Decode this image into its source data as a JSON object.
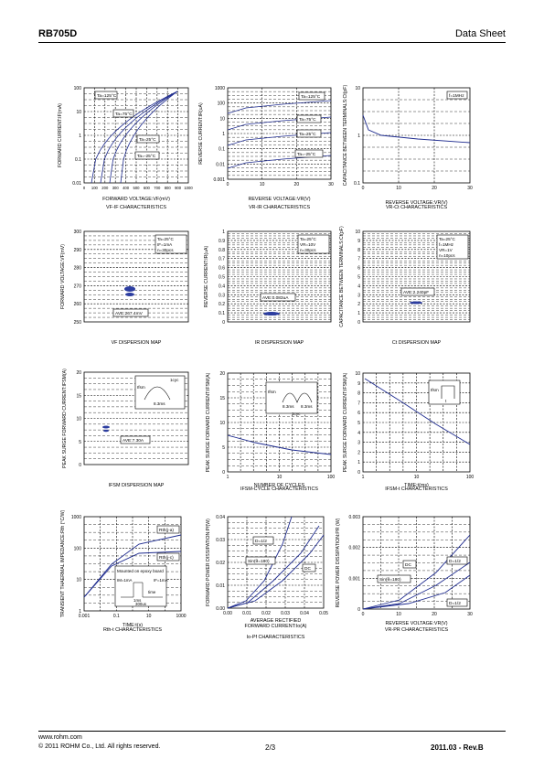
{
  "header": {
    "part_number": "RB705D",
    "doc_type": "Data Sheet"
  },
  "footer": {
    "url": "www.rohm.com",
    "copyright": "© 2011  ROHM Co., Ltd. All rights reserved.",
    "page": "2/3",
    "revision": "2011.03 - Rev.B"
  },
  "graphs": [
    {
      "id": "vf-if",
      "ylabel": "FORWARD CURRENT:IF(mA)",
      "xlabel": "FORWARD VOLTAGE:VF(mV)",
      "caption": "VF-IF CHARACTERISTICS",
      "xticks": [
        "0",
        "100",
        "200",
        "300",
        "400",
        "500",
        "600",
        "700",
        "800",
        "900",
        "1000"
      ],
      "yticks": [
        "100",
        "10",
        "1",
        "0.1",
        "0.01"
      ],
      "labels": [
        "Ta=125°C",
        "Ta=75°C",
        "Ta=25°C",
        "Ta=-25°C"
      ]
    },
    {
      "id": "vr-ir",
      "ylabel": "REVERSE CURRENT:IR(uA)",
      "xlabel": "REVERSE VOLTAGE:VR(V)",
      "caption": "VR-IR CHARACTERISTICS",
      "xticks": [
        "0",
        "10",
        "20",
        "30"
      ],
      "yticks": [
        "1000",
        "100",
        "10",
        "1",
        "0.1",
        "0.01",
        "0.001"
      ],
      "labels": [
        "Ta=125°C",
        "Ta=75°C",
        "Ta=25°C",
        "Ta=-25°C"
      ]
    },
    {
      "id": "vr-ct",
      "ylabel": "CAPACITANCE BETWEEN TERMINALS:Ct(pF)",
      "xlabel": "REVERSE VOLTAGE:VR(V)",
      "caption": "VR-Ct CHARACTERISTICS",
      "xticks": [
        "0",
        "10",
        "20",
        "30"
      ],
      "yticks": [
        "10",
        "1",
        "0.1"
      ],
      "labels": [
        "f=1MHz"
      ]
    },
    {
      "id": "vf-map",
      "ylabel": "FORWARD VOLTAGE:VF(mV)",
      "caption": "VF DISPERSION MAP",
      "yticks": [
        "300",
        "290",
        "280",
        "270",
        "260",
        "250"
      ],
      "labels": [
        "Ta=25°C",
        "IF=1mA",
        "n=30pcs"
      ],
      "ave": "AVE:267.4mV"
    },
    {
      "id": "ir-map",
      "ylabel": "REVERSE CURRENT:IR(uA)",
      "caption": "IR DISPERSION MAP",
      "yticks": [
        "1",
        "0.9",
        "0.8",
        "0.7",
        "0.6",
        "0.5",
        "0.4",
        "0.3",
        "0.2",
        "0.1",
        "0"
      ],
      "labels": [
        "Ta=25°C",
        "VR=10V",
        "n=30pcs"
      ],
      "ave": "AVE:0.083uA"
    },
    {
      "id": "ct-map",
      "ylabel": "CAPACITANCE BETWEEN TERMINALS:Ct(pF)",
      "caption": "Ct DISPERSION MAP",
      "yticks": [
        "10",
        "9",
        "8",
        "7",
        "6",
        "5",
        "4",
        "3",
        "2",
        "1",
        "0"
      ],
      "labels": [
        "Ta=25°C",
        "f=1MHz",
        "VR=1V",
        "n=10pcs"
      ],
      "ave": "AVE:2.240pF"
    },
    {
      "id": "ifsm-map",
      "ylabel": "PEAK SURGE FORWARD CURRENT:IFSM(A)",
      "caption": "IFSM DISPERSION MAP",
      "yticks": [
        "20",
        "15",
        "10",
        "5",
        "0"
      ],
      "labels": [
        "Ifsm",
        "1cyc",
        "8.3ms"
      ],
      "ave": "AVE:7.30A"
    },
    {
      "id": "ifsm-cycle",
      "ylabel": "PEAK SURGE FORWARD CURRENT:IFSM(A)",
      "xlabel": "NUMBER OF CYCLES",
      "caption": "IFSM-CYCLE CHARACTERISTICS",
      "xticks": [
        "1",
        "10",
        "100"
      ],
      "yticks": [
        "20",
        "15",
        "10",
        "5",
        "0"
      ],
      "labels": [
        "Ifsm",
        "8.3ms",
        "8.3ms",
        "1cyc"
      ]
    },
    {
      "id": "ifsm-t",
      "ylabel": "PEAK SURGE FORWARD CURRENT:IFSM(A)",
      "xlabel": "TIME:t(ms)",
      "caption": "IFSM-t CHARACTERISTICS",
      "xticks": [
        "1",
        "10",
        "100"
      ],
      "yticks": [
        "10",
        "9",
        "8",
        "7",
        "6",
        "5",
        "4",
        "3",
        "2",
        "1",
        "0"
      ],
      "labels": [
        "Ifsm",
        "t"
      ]
    },
    {
      "id": "rth-t",
      "ylabel": "TRANSIENT THAERMAL IMPEDANCE:Rth (°C/W)",
      "xlabel": "TIME:t(s)",
      "caption": "Rth-t CHARACTERISTICS",
      "xticks": [
        "0.001",
        "0.1",
        "10",
        "1000"
      ],
      "yticks": [
        "1000",
        "100",
        "10",
        "1"
      ],
      "labels": [
        "Rth(j-a)",
        "Rth(j-c)",
        "Mounted on epoxy board",
        "IM=1mA",
        "IF=1mA",
        "1ms",
        "time",
        "300us"
      ]
    },
    {
      "id": "io-pf",
      "ylabel": "FORWARD POWER DISSIPATION:Pf(W)",
      "xlabel": "AVERAGE RECTIFIED FORWARD CURRENT:Io(A)",
      "caption": "Io-Pf CHARACTERISTICS",
      "xticks": [
        "0.00",
        "0.01",
        "0.02",
        "0.03",
        "0.04",
        "0.05"
      ],
      "yticks": [
        "0.04",
        "0.03",
        "0.02",
        "0.01",
        "0.00"
      ],
      "labels": [
        "D=1/2",
        "Sin(θ=180)",
        "DC"
      ]
    },
    {
      "id": "vr-pr",
      "ylabel": "REVERSE POWER DISSIPATION:PR (W)",
      "xlabel": "REVERSE VOLTAGE:VR(V)",
      "caption": "VR-PR CHARACTERISTICS",
      "xticks": [
        "0",
        "10",
        "20",
        "30"
      ],
      "yticks": [
        "0.003",
        "0.002",
        "0.001",
        "0"
      ],
      "labels": [
        "DC",
        "D=1/2",
        "Sin(θ=180)",
        "D=1/2"
      ]
    }
  ]
}
